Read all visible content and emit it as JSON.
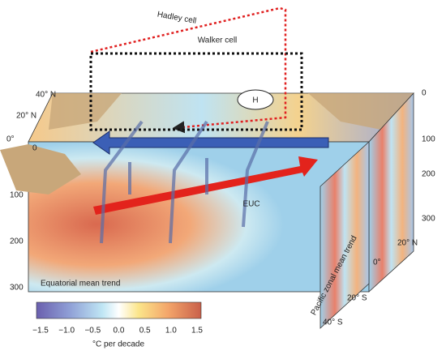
{
  "circulation": {
    "hadley": "Hadley cell",
    "walker": "Walker cell",
    "high": "H",
    "euc": "EUC"
  },
  "top_latitudes": [
    "40° N",
    "20° N",
    "0°"
  ],
  "left_depths": [
    "0",
    "100",
    "200",
    "300"
  ],
  "right_depths": [
    "0",
    "100",
    "200",
    "300"
  ],
  "side_latitudes": [
    "20° N",
    "0°",
    "20° S",
    "40° S"
  ],
  "panels": {
    "front": "Equatorial mean trend",
    "side": "Pacific zonal mean trend"
  },
  "colorbar": {
    "ticks": [
      "−1.5",
      "−1.0",
      "−0.5",
      "0.0",
      "0.5",
      "1.0",
      "1.5"
    ],
    "label": "°C per decade"
  }
}
